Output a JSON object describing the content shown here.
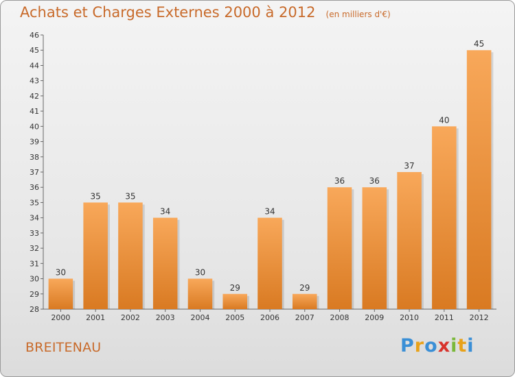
{
  "header": {
    "title": "Achats et Charges Externes 2000 à 2012",
    "unit": "(en milliers d'€)"
  },
  "footer": {
    "commune": "BREITENAU",
    "logo_letters": [
      "P",
      "r",
      "o",
      "x",
      "i",
      "t",
      "i"
    ],
    "logo_colors": [
      "#3a8fd6",
      "#e8a21a",
      "#3a8fd6",
      "#d8322b",
      "#7ab83a",
      "#e8a21a",
      "#3a8fd6"
    ]
  },
  "colors": {
    "bar_top": "#f8a85a",
    "bar_bottom": "#d97a22",
    "accent": "#c86a2a"
  },
  "chart_data": {
    "type": "bar",
    "title": "Achats et Charges Externes 2000 à 2012",
    "subtitle": "(en milliers d'€)",
    "categories": [
      "2000",
      "2001",
      "2002",
      "2003",
      "2004",
      "2005",
      "2006",
      "2007",
      "2008",
      "2009",
      "2010",
      "2011",
      "2012"
    ],
    "values": [
      30,
      35,
      35,
      34,
      30,
      29,
      34,
      29,
      36,
      36,
      37,
      40,
      45
    ],
    "ylim": [
      28,
      46
    ],
    "yticks": [
      28,
      29,
      30,
      31,
      32,
      33,
      34,
      35,
      36,
      37,
      38,
      39,
      40,
      41,
      42,
      43,
      44,
      45,
      46
    ],
    "grid": false,
    "data_labels": true
  }
}
